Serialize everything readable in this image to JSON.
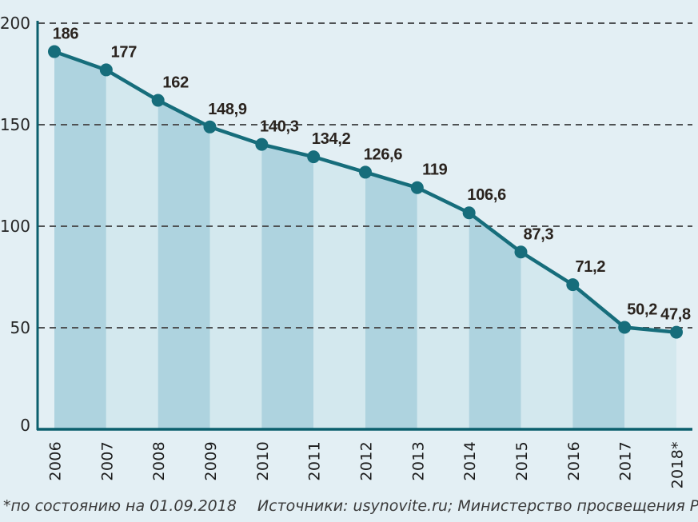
{
  "chart_data": {
    "type": "area",
    "title": "",
    "categories": [
      "2006",
      "2007",
      "2008",
      "2009",
      "2010",
      "2011",
      "2012",
      "2013",
      "2014",
      "2015",
      "2016",
      "2017",
      "2018*"
    ],
    "values": [
      186,
      177,
      162,
      148.9,
      140.3,
      134.2,
      126.6,
      119,
      106.6,
      87.3,
      71.2,
      50.2,
      47.8
    ],
    "value_labels": [
      "186",
      "177",
      "162",
      "148,9",
      "140,3",
      "134,2",
      "126,6",
      "119",
      "106,6",
      "87,3",
      "71,2",
      "50,2",
      "47,8"
    ],
    "xlabel": "",
    "ylabel": "",
    "ylim": [
      0,
      200
    ],
    "y_ticks": [
      0,
      50,
      100,
      150,
      200
    ],
    "y_tick_labels": [
      "0",
      "50",
      "100",
      "150",
      "200"
    ],
    "grid": "horizontal-dashed",
    "legend_position": "none",
    "marker": "circle",
    "band_pattern": "alternating-segments",
    "colors": {
      "background": "#e3eff4",
      "band_dark": "#aed3df",
      "band_light": "#d3e8ee",
      "line": "#166d7b",
      "marker": "#166d7b",
      "axis": "#0b5f6d",
      "grid": "#4f5254",
      "value_label": "#2a231e",
      "y_tick_label": "#262626",
      "x_tick_label": "#1a1a1a"
    }
  },
  "caption": {
    "footnote": "*по состоянию на 01.09.2018",
    "sources": "Источники: usynovite.ru; Министерство просвещения РФ"
  }
}
